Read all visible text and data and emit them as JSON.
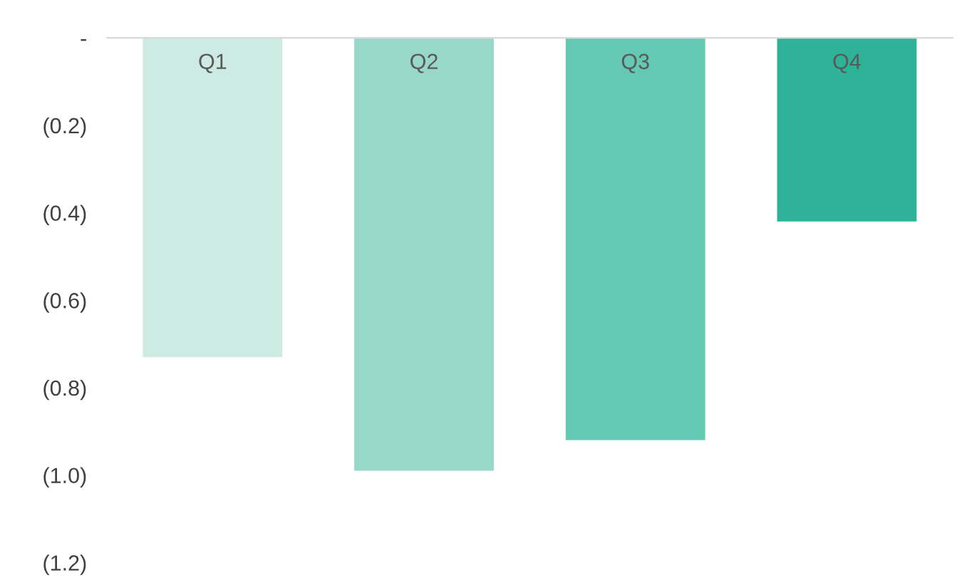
{
  "chart_data": {
    "type": "bar",
    "categories": [
      "Q1",
      "Q2",
      "Q3",
      "Q4"
    ],
    "values": [
      -0.73,
      -0.99,
      -0.92,
      -0.42
    ],
    "colors": [
      "#cdebe3",
      "#98d8cb",
      "#64c8b2",
      "#2eb398"
    ],
    "ylim": [
      -1.2,
      0
    ],
    "yticks": [
      {
        "value": 0,
        "label": "-"
      },
      {
        "value": -0.2,
        "label": "(0.2)"
      },
      {
        "value": -0.4,
        "label": "(0.4)"
      },
      {
        "value": -0.6,
        "label": "(0.6)"
      },
      {
        "value": -0.8,
        "label": "(0.8)"
      },
      {
        "value": -1.0,
        "label": "(1.0)"
      },
      {
        "value": -1.2,
        "label": "(1.2)"
      }
    ],
    "grid": false
  }
}
